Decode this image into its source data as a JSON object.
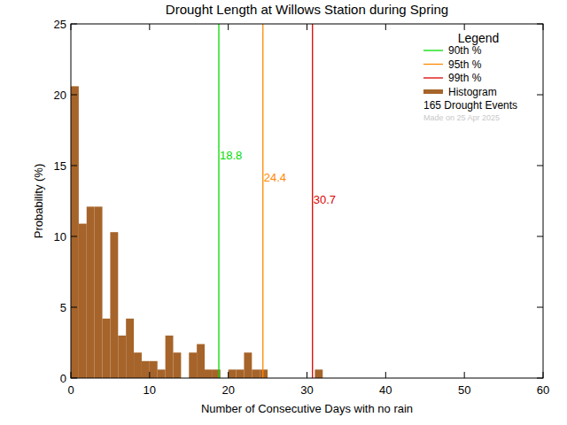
{
  "chart_data": {
    "type": "histogram",
    "title": "Drought Length at Willows Station during Spring",
    "x_label": "Number of Consecutive Days with no rain",
    "y_label": "Probability (%)",
    "bins": [
      0,
      1,
      2,
      3,
      4,
      5,
      6,
      7,
      8,
      9,
      10,
      11,
      12,
      13,
      14,
      15,
      16,
      17,
      18,
      19,
      20,
      21,
      22,
      23,
      24,
      25,
      26,
      27,
      28,
      29,
      30,
      31,
      32,
      33,
      34,
      35,
      36,
      37,
      38,
      39,
      40,
      41,
      42,
      43,
      44,
      45,
      46,
      47,
      48,
      49,
      50,
      51,
      52,
      53,
      54,
      55,
      56,
      57,
      58,
      59,
      60
    ],
    "series": [
      {
        "name": "Histogram",
        "color": "#a6642a",
        "values": [
          20.6,
          10.9,
          12.1,
          12.1,
          4.2,
          10.3,
          3.0,
          4.2,
          1.8,
          1.2,
          1.2,
          0.6,
          3.0,
          1.8,
          0,
          1.8,
          2.4,
          0.6,
          0.6,
          0,
          0.6,
          0.6,
          1.8,
          0.6,
          0.6,
          0,
          0,
          0,
          0,
          0,
          0,
          0.6,
          0,
          0,
          0,
          0,
          0,
          0,
          0,
          0,
          0,
          0,
          0,
          0,
          0,
          0,
          0,
          0,
          0,
          0,
          0,
          0,
          0,
          0,
          0,
          0,
          0,
          0,
          0,
          0
        ]
      }
    ],
    "percentiles": [
      {
        "name": "90th %",
        "value": 18.8,
        "color": "#00dd00"
      },
      {
        "name": "95th %",
        "value": 24.4,
        "color": "#ff8800"
      },
      {
        "name": "99th %",
        "value": 30.7,
        "color": "#dd0000"
      }
    ],
    "legend_title": "Legend",
    "legend": "top-right",
    "annotations": [
      "165 Drought Events",
      "Made on 25 Apr 2025"
    ],
    "xlim": [
      0,
      60
    ],
    "xticks": [
      0,
      10,
      20,
      30,
      40,
      50,
      60
    ],
    "ylim": [
      0,
      25
    ],
    "yticks": [
      0,
      5,
      10,
      15,
      20,
      25
    ],
    "grid": false
  }
}
